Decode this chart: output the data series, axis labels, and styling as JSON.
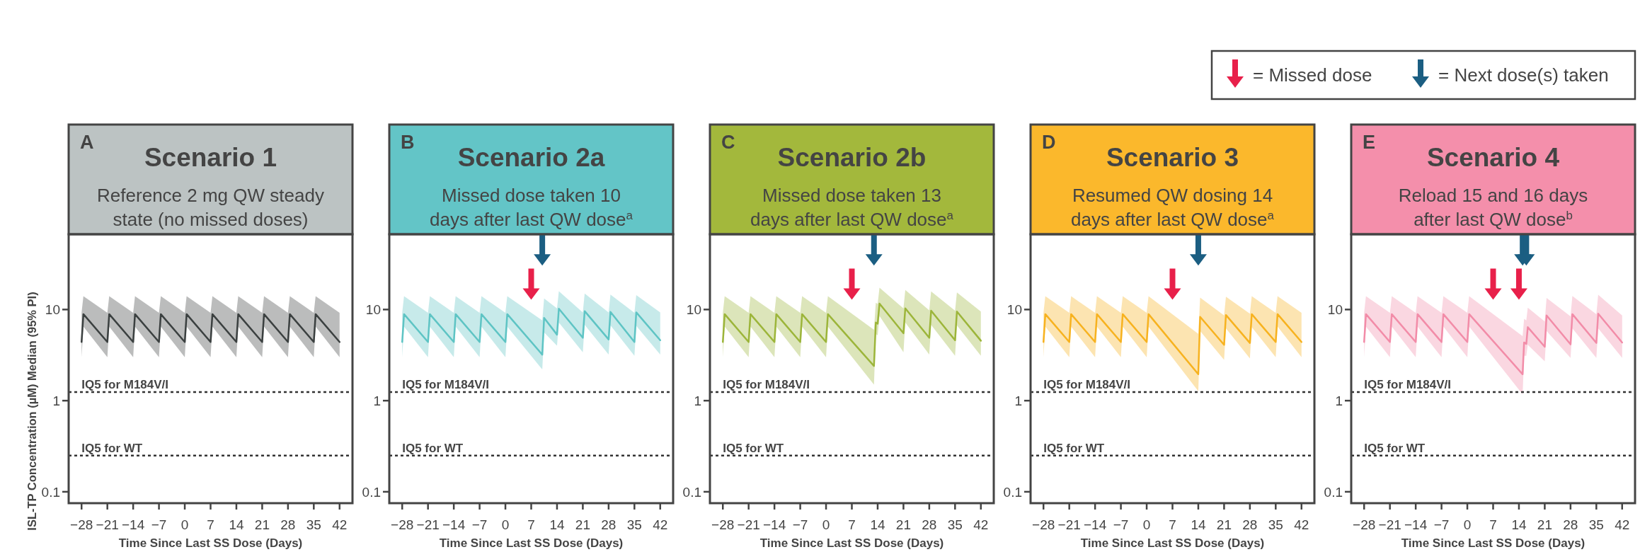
{
  "chart_data": [
    {
      "type": "other",
      "annotations": [
        "= Missed dose",
        "= Next dose(s) taken"
      ]
    },
    {
      "type": "line",
      "title": "Scenario 1",
      "subtitle": "Reference 2 mg QW steady\nstate (no missed doses)",
      "annotations": [
        "A"
      ],
      "xlabel": "Time Since Last SS Dose (Days)",
      "ylabel": "ISL-TP Concentration (µM) Median (95% PI)",
      "log": "y",
      "xlim": [
        -31.5,
        45.5
      ],
      "ylim": [
        0.075,
        67
      ],
      "xticks": [
        {
          "value": -28,
          "label": "−28"
        },
        {
          "value": -21,
          "label": "−21"
        },
        {
          "value": -14,
          "label": "−14"
        },
        {
          "value": -7,
          "label": "−7"
        },
        0,
        7,
        14,
        21,
        28,
        35,
        42
      ],
      "yticks": [
        0.1,
        1,
        10
      ],
      "ref_lines": [
        {
          "axis": "y",
          "value": 1.24,
          "label": "IQ5 for M184V/I",
          "line_style": "dotted"
        },
        {
          "axis": "y",
          "value": 0.25,
          "label": "IQ5 for WT",
          "line_style": "dotted"
        }
      ],
      "series": [
        {
          "type": "line",
          "color": "#3b4040",
          "x": [
            -28,
            -27.5,
            -21,
            -20.5,
            -14,
            -13.5,
            -7,
            -6.5,
            0,
            0.5,
            7,
            7.5,
            14,
            14.5,
            21,
            21.5,
            28,
            28.5,
            35,
            35.5,
            42
          ],
          "values": [
            4.4,
            8.9,
            4.4,
            8.9,
            4.4,
            8.9,
            4.4,
            8.9,
            4.4,
            8.9,
            4.4,
            8.9,
            4.4,
            8.9,
            4.4,
            8.9,
            4.4,
            8.9,
            4.4,
            8.9,
            4.4
          ],
          "lower": [
            3.0,
            6.5,
            3.0,
            6.5,
            3.0,
            6.5,
            3.0,
            6.5,
            3.0,
            6.5,
            3.0,
            6.5,
            3.0,
            6.5,
            3.0,
            6.5,
            3.0,
            6.5,
            3.0,
            6.5,
            3.0
          ],
          "upper": [
            9.2,
            14,
            9.2,
            14,
            9.2,
            14,
            9.2,
            14,
            9.2,
            14,
            9.2,
            14,
            9.2,
            14,
            9.2,
            14,
            9.2,
            14,
            9.2,
            14,
            9.2
          ]
        }
      ]
    },
    {
      "type": "line",
      "title": "Scenario 2a",
      "subtitle": "Missed dose taken 10\ndays after last QW dose$^{a}$",
      "annotations": [
        "B"
      ],
      "xlabel": "Time Since Last SS Dose (Days)",
      "log": "y",
      "xlim": [
        -31.5,
        45.5
      ],
      "ylim": [
        0.075,
        67
      ],
      "xticks": [
        {
          "value": -28,
          "label": "−28"
        },
        {
          "value": -21,
          "label": "−21"
        },
        {
          "value": -14,
          "label": "−14"
        },
        {
          "value": -7,
          "label": "−7"
        },
        0,
        7,
        14,
        21,
        28,
        35,
        42
      ],
      "yticks": [
        0.1,
        1,
        10
      ],
      "ref_lines": [
        {
          "axis": "y",
          "value": 1.24,
          "label": "IQ5 for M184V/I",
          "line_style": "dotted"
        },
        {
          "axis": "y",
          "value": 0.25,
          "label": "IQ5 for WT",
          "line_style": "dotted"
        }
      ],
      "series": [
        {
          "type": "line",
          "color": "#5ec4c4",
          "x": [
            -28,
            -27.5,
            -21,
            -20.5,
            -14,
            -13.5,
            -7,
            -6.5,
            0,
            0.5,
            10,
            10.5,
            14,
            14.5,
            21,
            21.5,
            28,
            28.5,
            35,
            35.5,
            42
          ],
          "values": [
            4.4,
            8.9,
            4.4,
            8.9,
            4.4,
            8.9,
            4.4,
            8.9,
            4.4,
            8.9,
            3.2,
            8.1,
            5.3,
            10.2,
            4.9,
            9.6,
            4.7,
            9.4,
            4.4,
            9.3,
            4.6
          ],
          "lower": [
            3.0,
            6.5,
            3.0,
            6.5,
            3.0,
            6.5,
            3.0,
            6.5,
            3.0,
            6.5,
            2.2,
            5.6,
            4.0,
            7.2,
            3.4,
            6.8,
            3.2,
            6.7,
            3.1,
            6.6,
            3.2
          ],
          "upper": [
            9.2,
            14,
            9.2,
            14,
            9.2,
            14,
            9.2,
            14,
            9.2,
            14,
            7.6,
            13.2,
            10.3,
            15.9,
            9.3,
            15,
            9.3,
            14.6,
            9.2,
            14.4,
            9.3
          ]
        },
        {
          "type": "scatter",
          "color": "#e8204a",
          "x": [
            7
          ],
          "values": [
            19
          ]
        },
        {
          "type": "scatter",
          "color": "#1b5e82",
          "x": [
            10
          ],
          "values": [
            45
          ]
        }
      ]
    },
    {
      "type": "line",
      "title": "Scenario 2b",
      "subtitle": "Missed dose taken 13\ndays after last QW dose$^{a}$",
      "annotations": [
        "C"
      ],
      "xlabel": "Time Since Last SS Dose (Days)",
      "log": "y",
      "xlim": [
        -31.5,
        45.5
      ],
      "ylim": [
        0.075,
        67
      ],
      "xticks": [
        {
          "value": -28,
          "label": "−28"
        },
        {
          "value": -21,
          "label": "−21"
        },
        {
          "value": -14,
          "label": "−14"
        },
        {
          "value": -7,
          "label": "−7"
        },
        0,
        7,
        14,
        21,
        28,
        35,
        42
      ],
      "yticks": [
        0.1,
        1,
        10
      ],
      "ref_lines": [
        {
          "axis": "y",
          "value": 1.24,
          "label": "IQ5 for M184V/I",
          "line_style": "dotted"
        },
        {
          "axis": "y",
          "value": 0.25,
          "label": "IQ5 for WT",
          "line_style": "dotted"
        }
      ],
      "series": [
        {
          "type": "line",
          "color": "#9cb53a",
          "x": [
            -28,
            -27.5,
            -21,
            -20.5,
            -14,
            -13.5,
            -7,
            -6.5,
            0,
            0.5,
            13,
            13.5,
            14,
            14.5,
            21,
            21.5,
            28,
            28.5,
            35,
            35.5,
            42
          ],
          "values": [
            4.4,
            8.9,
            4.4,
            8.9,
            4.4,
            8.9,
            4.4,
            8.9,
            4.4,
            8.9,
            2.4,
            7.2,
            7.0,
            11.6,
            5.5,
            10.3,
            4.9,
            9.7,
            4.6,
            9.5,
            4.55
          ],
          "lower": [
            3.0,
            6.5,
            3.0,
            6.5,
            3.0,
            6.5,
            3.0,
            6.5,
            3.0,
            6.5,
            1.5,
            5.4,
            5.2,
            8.5,
            3.4,
            7.2,
            3.2,
            6.8,
            3.1,
            6.7,
            3.1
          ],
          "upper": [
            9.2,
            14,
            9.2,
            14,
            9.2,
            14,
            9.2,
            14,
            9.2,
            14,
            6.0,
            11.9,
            11.5,
            17.4,
            10.3,
            16.4,
            9.8,
            15.8,
            9.7,
            15.4,
            9.5
          ]
        },
        {
          "type": "scatter",
          "color": "#e8204a",
          "x": [
            7
          ],
          "values": [
            19
          ]
        },
        {
          "type": "scatter",
          "color": "#1b5e82",
          "x": [
            13
          ],
          "values": [
            45
          ]
        }
      ]
    },
    {
      "type": "line",
      "title": "Scenario 3",
      "subtitle": "Resumed QW dosing 14\ndays after last QW dose$^{a}$",
      "annotations": [
        "D"
      ],
      "xlabel": "Time Since Last SS Dose (Days)",
      "log": "y",
      "xlim": [
        -31.5,
        45.5
      ],
      "ylim": [
        0.075,
        67
      ],
      "xticks": [
        {
          "value": -28,
          "label": "−28"
        },
        {
          "value": -21,
          "label": "−21"
        },
        {
          "value": -14,
          "label": "−14"
        },
        {
          "value": -7,
          "label": "−7"
        },
        0,
        7,
        14,
        21,
        28,
        35,
        42
      ],
      "yticks": [
        0.1,
        1,
        10
      ],
      "ref_lines": [
        {
          "axis": "y",
          "value": 1.24,
          "label": "IQ5 for M184V/I",
          "line_style": "dotted"
        },
        {
          "axis": "y",
          "value": 0.25,
          "label": "IQ5 for WT",
          "line_style": "dotted"
        }
      ],
      "series": [
        {
          "type": "line",
          "color": "#f7b21f",
          "x": [
            -28,
            -27.5,
            -21,
            -20.5,
            -14,
            -13.5,
            -7,
            -6.5,
            0,
            0.5,
            14,
            14.5,
            21,
            21.5,
            28,
            28.5,
            35,
            35.5,
            42
          ],
          "values": [
            4.4,
            8.9,
            4.4,
            8.9,
            4.4,
            8.9,
            4.4,
            8.9,
            4.4,
            8.9,
            1.95,
            8.3,
            4.1,
            8.7,
            4.3,
            8.9,
            4.4,
            8.9,
            4.4
          ],
          "lower": [
            3.0,
            6.5,
            3.0,
            6.5,
            3.0,
            6.5,
            3.0,
            6.5,
            3.0,
            6.5,
            1.27,
            5.8,
            2.8,
            6.2,
            2.9,
            6.4,
            3.0,
            6.5,
            3.0
          ],
          "upper": [
            9.2,
            14,
            9.2,
            14,
            9.2,
            14,
            9.2,
            14,
            9.2,
            14,
            5.4,
            13.5,
            8.6,
            13.8,
            9.0,
            14,
            9.2,
            14,
            9.2
          ]
        },
        {
          "type": "scatter",
          "color": "#e8204a",
          "x": [
            7
          ],
          "values": [
            19
          ]
        },
        {
          "type": "scatter",
          "color": "#1b5e82",
          "x": [
            14
          ],
          "values": [
            45
          ]
        }
      ]
    },
    {
      "type": "line",
      "title": "Scenario 4",
      "subtitle": "Reload 15 and 16 days\nafter last QW dose$^{b}$",
      "annotations": [
        "E"
      ],
      "xlabel": "Time Since Last SS Dose (Days)",
      "log": "y",
      "xlim": [
        -31.5,
        45.5
      ],
      "ylim": [
        0.075,
        67
      ],
      "xticks": [
        {
          "value": -28,
          "label": "−28"
        },
        {
          "value": -21,
          "label": "−21"
        },
        {
          "value": -14,
          "label": "−14"
        },
        {
          "value": -7,
          "label": "−7"
        },
        0,
        7,
        14,
        21,
        28,
        35,
        42
      ],
      "yticks": [
        0.1,
        1,
        10
      ],
      "ref_lines": [
        {
          "axis": "y",
          "value": 1.24,
          "label": "IQ5 for M184V/I",
          "line_style": "dotted"
        },
        {
          "axis": "y",
          "value": 0.25,
          "label": "IQ5 for WT",
          "line_style": "dotted"
        }
      ],
      "series": [
        {
          "type": "line",
          "color": "#f28ca8",
          "x": [
            -28,
            -27.5,
            -21,
            -20.5,
            -14,
            -13.5,
            -7,
            -6.5,
            0,
            0.5,
            15,
            15.4,
            16,
            16.4,
            21,
            21.5,
            28,
            28.5,
            35,
            35.5,
            42
          ],
          "values": [
            4.4,
            8.9,
            4.4,
            8.9,
            4.4,
            8.9,
            4.4,
            8.9,
            4.4,
            8.9,
            1.95,
            4.35,
            4.2,
            6.4,
            3.9,
            8.6,
            4.15,
            8.9,
            4.3,
            9.0,
            4.35
          ],
          "lower": [
            3.0,
            6.5,
            3.0,
            6.5,
            3.0,
            6.5,
            3.0,
            6.5,
            3.0,
            6.5,
            1.17,
            3.1,
            3.1,
            4.1,
            2.7,
            5.8,
            2.95,
            6.2,
            2.95,
            6.2,
            2.95
          ],
          "upper": [
            9.2,
            14,
            9.2,
            14,
            9.2,
            14,
            9.2,
            14,
            9.2,
            14,
            5.1,
            7.9,
            7.6,
            10.5,
            7.4,
            13.4,
            8.4,
            14.1,
            8.9,
            14.5,
            8.6
          ]
        },
        {
          "type": "scatter",
          "color": "#e8204a",
          "x": [
            7,
            14
          ],
          "values": [
            19,
            19
          ]
        },
        {
          "type": "scatter",
          "color": "#1b5e82",
          "x": [
            15,
            16
          ],
          "values": [
            45,
            45
          ]
        }
      ]
    }
  ]
}
